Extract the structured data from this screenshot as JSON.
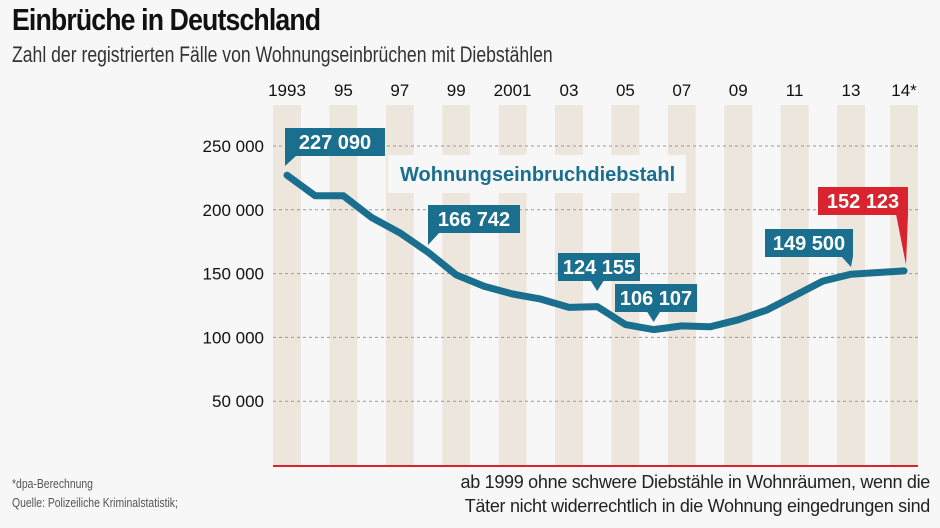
{
  "header": {
    "title": "Einbrüche in Deutschland",
    "subtitle": "Zahl der registrierten Fälle von Wohnungseinbrüchen mit Diebstählen"
  },
  "footer": {
    "note": "*dpa-Berechnung",
    "source": "Quelle: Polizeiliche Kriminalstatistik;",
    "remark_line1": "ab 1999 ohne schwere Diebstähle in Wohnräumen, wenn die",
    "remark_line2": "Täter nicht widerrechtlich in die Wohnung eingedrungen sind"
  },
  "colors": {
    "line": "#1a6e8e",
    "highlight": "#d9232e",
    "band": "#ede6dc",
    "grid": "#999999",
    "baseline": "#d9232e"
  },
  "chart_data": {
    "type": "line",
    "title": "Einbrüche in Deutschland",
    "subtitle": "Zahl der registrierten Fälle von Wohnungseinbrüchen mit Diebstählen",
    "xlabel": "",
    "ylabel": "",
    "ylim": [
      0,
      250000
    ],
    "yticks": [
      50000,
      100000,
      150000,
      200000,
      250000
    ],
    "ytick_labels": [
      "50 000",
      "100 000",
      "150 000",
      "200 000",
      "250 000"
    ],
    "xtick_years": [
      1993,
      1995,
      1997,
      1999,
      2001,
      2003,
      2005,
      2007,
      2009,
      2011,
      2013,
      2014
    ],
    "xtick_labels": [
      "1993",
      "95",
      "97",
      "99",
      "2001",
      "03",
      "05",
      "07",
      "09",
      "11",
      "13",
      "14*"
    ],
    "grid": true,
    "legend": "top-center",
    "series": [
      {
        "name": "Wohnungseinbruchdiebstahl",
        "x": [
          1993,
          1994,
          1995,
          1996,
          1997,
          1998,
          1999,
          2000,
          2001,
          2002,
          2003,
          2004,
          2005,
          2006,
          2007,
          2008,
          2009,
          2010,
          2011,
          2012,
          2013,
          2014
        ],
        "values": [
          227090,
          211000,
          211000,
          194000,
          182000,
          166742,
          149000,
          140000,
          134000,
          130000,
          123500,
          124155,
          110000,
          106107,
          109000,
          108300,
          113800,
          121300,
          132600,
          144100,
          149500,
          152123
        ]
      }
    ],
    "annotations": [
      {
        "year": 1993,
        "label": "227 090",
        "highlight": false
      },
      {
        "year": 1998,
        "label": "166 742",
        "highlight": false
      },
      {
        "year": 2004,
        "label": "124 155",
        "highlight": false
      },
      {
        "year": 2006,
        "label": "106 107",
        "highlight": false
      },
      {
        "year": 2013,
        "label": "149 500",
        "highlight": false
      },
      {
        "year": 2014,
        "label": "152 123",
        "highlight": true
      }
    ]
  }
}
